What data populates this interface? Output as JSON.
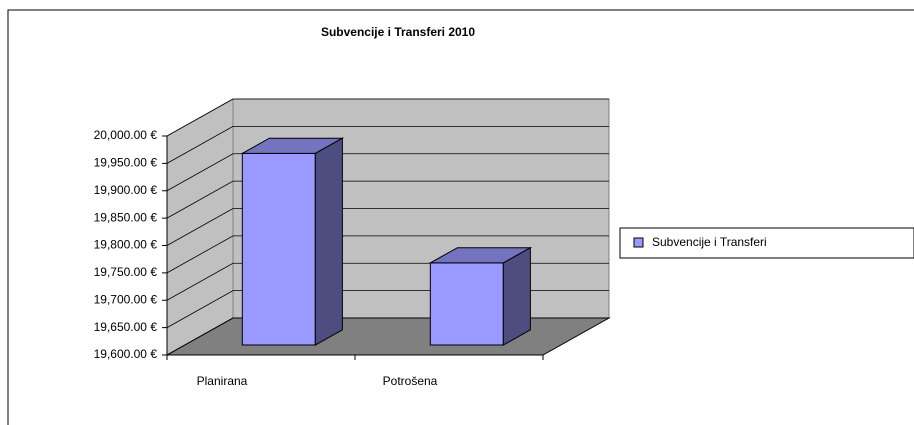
{
  "chart_data": {
    "type": "bar3d",
    "title": "Subvencije i Transferi 2010",
    "categories": [
      "Planirana",
      "Potrošena"
    ],
    "series": [
      {
        "name": "Subvencije i Transferi",
        "color": "#9999ff",
        "values": [
          19950,
          19750
        ]
      }
    ],
    "ylim": [
      19600,
      20000
    ],
    "yticks": [
      {
        "value": 19600,
        "label": "19,600.00 €"
      },
      {
        "value": 19650,
        "label": "19,650.00 €"
      },
      {
        "value": 19700,
        "label": "19,700.00 €"
      },
      {
        "value": 19750,
        "label": "19,750.00 €"
      },
      {
        "value": 19800,
        "label": "19,800.00 €"
      },
      {
        "value": 19850,
        "label": "19,850.00 €"
      },
      {
        "value": 19900,
        "label": "19,900.00 €"
      },
      {
        "value": 19950,
        "label": "19,950.00 €"
      },
      {
        "value": 20000,
        "label": "20,000.00 €"
      }
    ],
    "grid": true,
    "legend": "right"
  }
}
